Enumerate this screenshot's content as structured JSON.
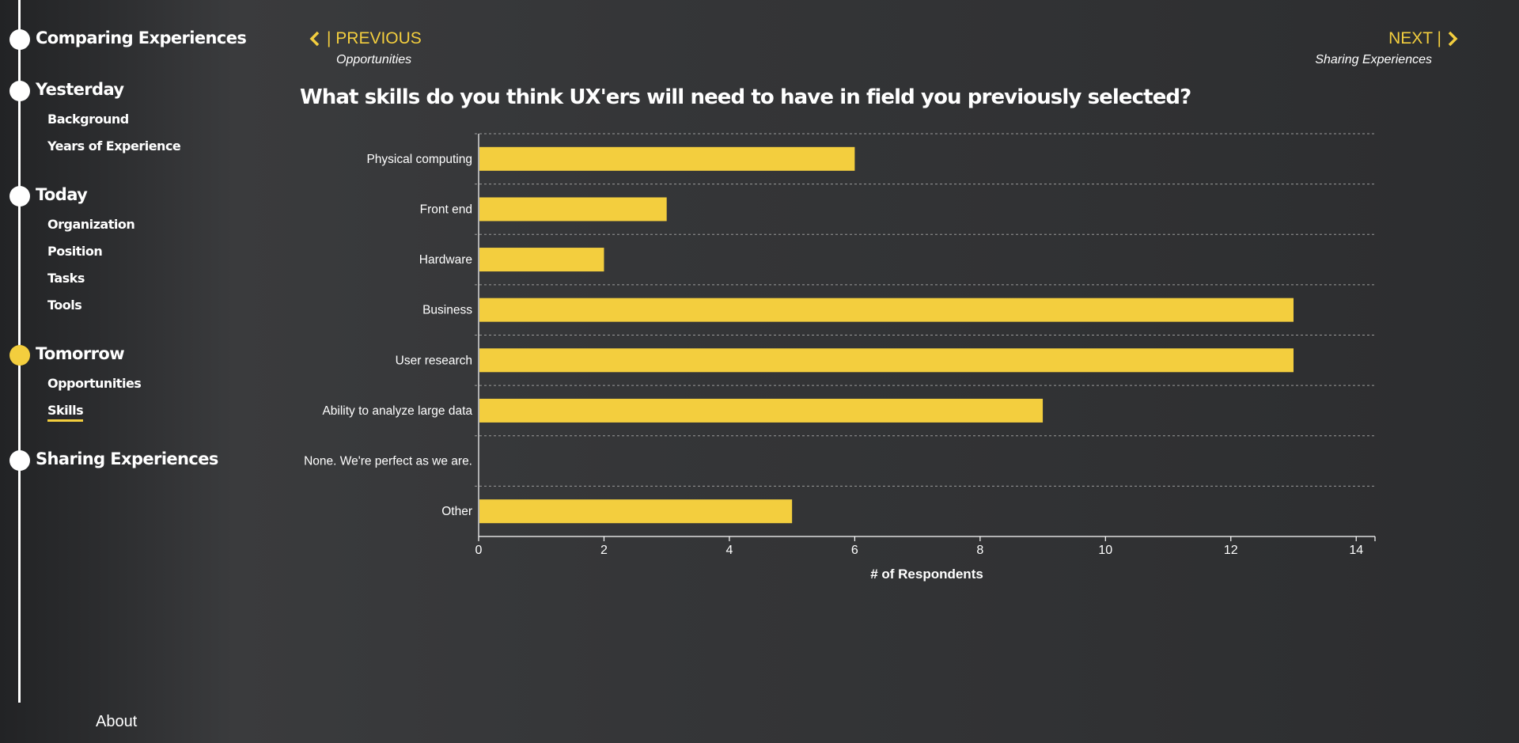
{
  "sidebar": {
    "sections": [
      {
        "title": "Comparing Experiences",
        "active": false,
        "items": []
      },
      {
        "title": "Yesterday",
        "active": false,
        "items": [
          "Background",
          "Years of Experience"
        ]
      },
      {
        "title": "Today",
        "active": false,
        "items": [
          "Organization",
          "Position",
          "Tasks",
          "Tools"
        ]
      },
      {
        "title": "Tomorrow",
        "active": true,
        "items": [
          "Opportunities",
          "Skills"
        ]
      },
      {
        "title": "Sharing Experiences",
        "active": false,
        "items": []
      }
    ],
    "current_item": "Skills",
    "about_label": "About"
  },
  "nav": {
    "prev_label": "| PREVIOUS",
    "prev_sub": "Opportunities",
    "next_label": "NEXT |",
    "next_sub": "Sharing Experiences",
    "prev_icon": "chevron-left-icon",
    "next_icon": "chevron-right-icon"
  },
  "question": "What skills do you think UX'ers will need to have in field you previously selected?",
  "colors": {
    "accent": "#f3ce3e",
    "text": "#ffffff",
    "background": "#2e2f31"
  },
  "chart_data": {
    "type": "bar",
    "orientation": "horizontal",
    "categories": [
      "Physical computing",
      "Front end",
      "Hardware",
      "Business",
      "User research",
      "Ability to analyze large data",
      "None. We're perfect as we are.",
      "Other"
    ],
    "values": [
      6,
      3,
      2,
      13,
      13,
      9,
      0,
      5
    ],
    "xlabel": "# of Respondents",
    "ylabel": "",
    "xlim": [
      0,
      14.3
    ],
    "xticks": [
      0,
      2,
      4,
      6,
      8,
      10,
      12,
      14
    ],
    "grid": "horizontal dashed",
    "bar_color": "#f3ce3e"
  }
}
